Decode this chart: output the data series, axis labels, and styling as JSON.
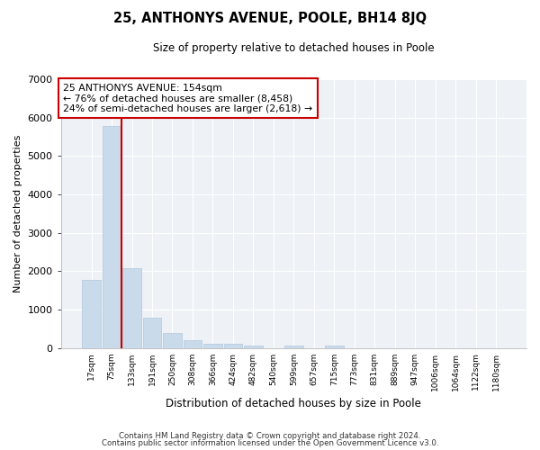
{
  "title": "25, ANTHONYS AVENUE, POOLE, BH14 8JQ",
  "subtitle": "Size of property relative to detached houses in Poole",
  "xlabel": "Distribution of detached houses by size in Poole",
  "ylabel": "Number of detached properties",
  "bar_color": "#c9daea",
  "bar_edge_color": "#b0c8dc",
  "background_color": "#eef2f7",
  "grid_color": "#ffffff",
  "fig_bg_color": "#ffffff",
  "categories": [
    "17sqm",
    "75sqm",
    "133sqm",
    "191sqm",
    "250sqm",
    "308sqm",
    "366sqm",
    "424sqm",
    "482sqm",
    "540sqm",
    "599sqm",
    "657sqm",
    "715sqm",
    "773sqm",
    "831sqm",
    "889sqm",
    "947sqm",
    "1006sqm",
    "1064sqm",
    "1122sqm",
    "1180sqm"
  ],
  "values": [
    1780,
    5780,
    2080,
    800,
    380,
    215,
    100,
    105,
    60,
    0,
    70,
    0,
    60,
    0,
    0,
    0,
    0,
    0,
    0,
    0,
    0
  ],
  "ylim": [
    0,
    7000
  ],
  "yticks": [
    0,
    1000,
    2000,
    3000,
    4000,
    5000,
    6000,
    7000
  ],
  "annotation_line1": "25 ANTHONYS AVENUE: 154sqm",
  "annotation_line2": "← 76% of detached houses are smaller (8,458)",
  "annotation_line3": "24% of semi-detached houses are larger (2,618) →",
  "vline_x_bar_index": 2,
  "vline_color": "#cc0000",
  "annotation_box_color": "#ffffff",
  "annotation_box_edge_color": "#cc0000",
  "footer1": "Contains HM Land Registry data © Crown copyright and database right 2024.",
  "footer2": "Contains public sector information licensed under the Open Government Licence v3.0."
}
